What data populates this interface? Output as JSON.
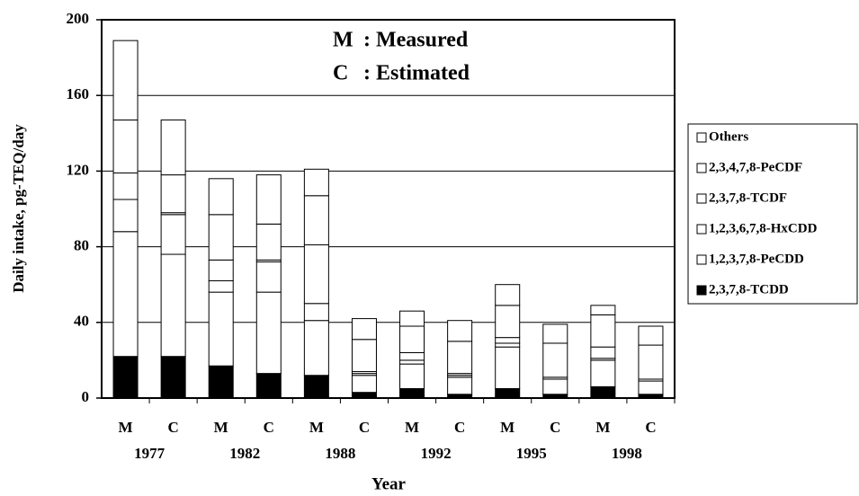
{
  "chart_data": {
    "type": "stacked_bar",
    "y_label": "Daily intake, pg-TEQ/day",
    "x_label": "Year",
    "categories": [
      "M",
      "C",
      "M",
      "C",
      "M",
      "C",
      "M",
      "C",
      "M",
      "C",
      "M",
      "C"
    ],
    "year_labels": [
      "1977",
      "1982",
      "1988",
      "1992",
      "1995",
      "1998"
    ],
    "annotations": [
      {
        "key": "M",
        "text": ": Measured"
      },
      {
        "key": "C",
        "text": ": Estimated"
      }
    ],
    "ylim": [
      0,
      200
    ],
    "yticks": [
      0,
      40,
      80,
      120,
      160,
      200
    ],
    "grid": true,
    "legend": "right",
    "series": [
      {
        "name": "2,3,7,8-TCDD",
        "color": "#000000",
        "values": [
          22,
          22,
          17,
          13,
          12,
          3,
          5,
          2,
          5,
          2,
          6,
          2
        ]
      },
      {
        "name": "1,2,3,7,8-PeCDD",
        "color": "#ffffff",
        "values": [
          66,
          54,
          39,
          43,
          29,
          9,
          13,
          9,
          22,
          8,
          14,
          7
        ]
      },
      {
        "name": "1,2,3,6,7,8-HxCDD",
        "color": "#ffffff",
        "values": [
          17,
          21,
          6,
          16,
          9,
          1,
          2,
          1,
          2,
          1,
          1,
          1
        ]
      },
      {
        "name": "2,3,7,8-TCDF",
        "color": "#ffffff",
        "values": [
          14,
          1,
          11,
          1,
          31,
          1,
          4,
          1,
          3,
          0,
          6,
          0
        ]
      },
      {
        "name": "2,3,4,7,8-PeCDF",
        "color": "#ffffff",
        "values": [
          28,
          20,
          24,
          19,
          26,
          17,
          14,
          17,
          17,
          18,
          17,
          18
        ]
      },
      {
        "name": "Others",
        "color": "#ffffff",
        "values": [
          42,
          29,
          19,
          26,
          14,
          11,
          8,
          11,
          11,
          10,
          5,
          10
        ]
      }
    ]
  }
}
